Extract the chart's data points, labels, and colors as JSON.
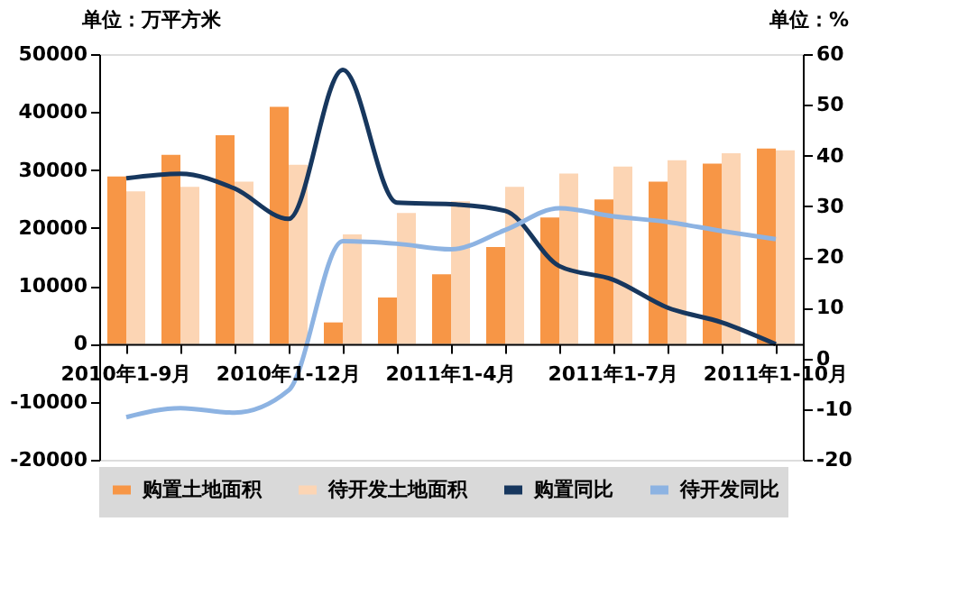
{
  "chart_data": {
    "type": "bar",
    "ylabel": "单位：万平方米",
    "y2label": "单位：%",
    "categories": [
      "2010年1-9月",
      null,
      null,
      "2010年1-12月",
      null,
      null,
      "2011年1-4月",
      null,
      null,
      "2011年1-7月",
      null,
      null,
      "2011年1-10月"
    ],
    "series": [
      {
        "name": "购置土地面积",
        "color": "#f79646",
        "values": [
          28900,
          32600,
          36000,
          40900,
          3700,
          8000,
          12000,
          16700,
          21800,
          24900,
          28000,
          31100,
          33700
        ]
      },
      {
        "name": "待开发土地面积",
        "color": "#fcd5b4",
        "values": [
          26300,
          27100,
          28000,
          30900,
          18900,
          22600,
          24600,
          27100,
          29400,
          30600,
          31700,
          32900,
          33400
        ]
      },
      {
        "name": "购置同比",
        "color": "#17375e",
        "type": "line",
        "axis": "y2",
        "values": [
          35.5,
          36.4,
          33.5,
          27.5,
          56.9,
          30.7,
          30.4,
          29.1,
          18.2,
          15.5,
          10.0,
          7.1,
          2.8
        ]
      },
      {
        "name": "待开发同比",
        "color": "#8db3e2",
        "type": "line",
        "axis": "y2",
        "values": [
          -11.6,
          -9.8,
          -10.7,
          -6.3,
          23.1,
          22.6,
          21.5,
          25.3,
          29.6,
          28.0,
          26.9,
          25.1,
          23.5
        ]
      }
    ],
    "ylim": [
      -20000,
      50000
    ],
    "yticks": [
      -20000,
      -10000,
      0,
      10000,
      20000,
      30000,
      40000,
      50000
    ],
    "y2lim": [
      -20,
      60
    ],
    "y2ticks": [
      -20,
      -10,
      0,
      10,
      20,
      30,
      40,
      50,
      60
    ],
    "grid": false,
    "legend": "bottom",
    "marker": "none",
    "line_style": "solid"
  }
}
